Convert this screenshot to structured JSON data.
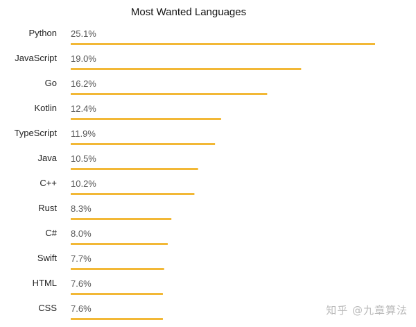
{
  "chart_data": {
    "type": "bar",
    "orientation": "horizontal",
    "title": "Most Wanted Languages",
    "xlabel": "",
    "ylabel": "",
    "categories": [
      "Python",
      "JavaScript",
      "Go",
      "Kotlin",
      "TypeScript",
      "Java",
      "C++",
      "Rust",
      "C#",
      "Swift",
      "HTML",
      "CSS"
    ],
    "values": [
      25.1,
      19.0,
      16.2,
      12.4,
      11.9,
      10.5,
      10.2,
      8.3,
      8.0,
      7.7,
      7.6,
      7.6
    ],
    "value_labels": [
      "25.1%",
      "19.0%",
      "16.2%",
      "12.4%",
      "11.9%",
      "10.5%",
      "10.2%",
      "8.3%",
      "8.0%",
      "7.7%",
      "7.6%",
      "7.6%"
    ],
    "xlim": [
      0,
      25.1
    ],
    "grid": false,
    "legend": "none",
    "bar_color": "#f2b836"
  },
  "watermark": "知乎 @九章算法"
}
